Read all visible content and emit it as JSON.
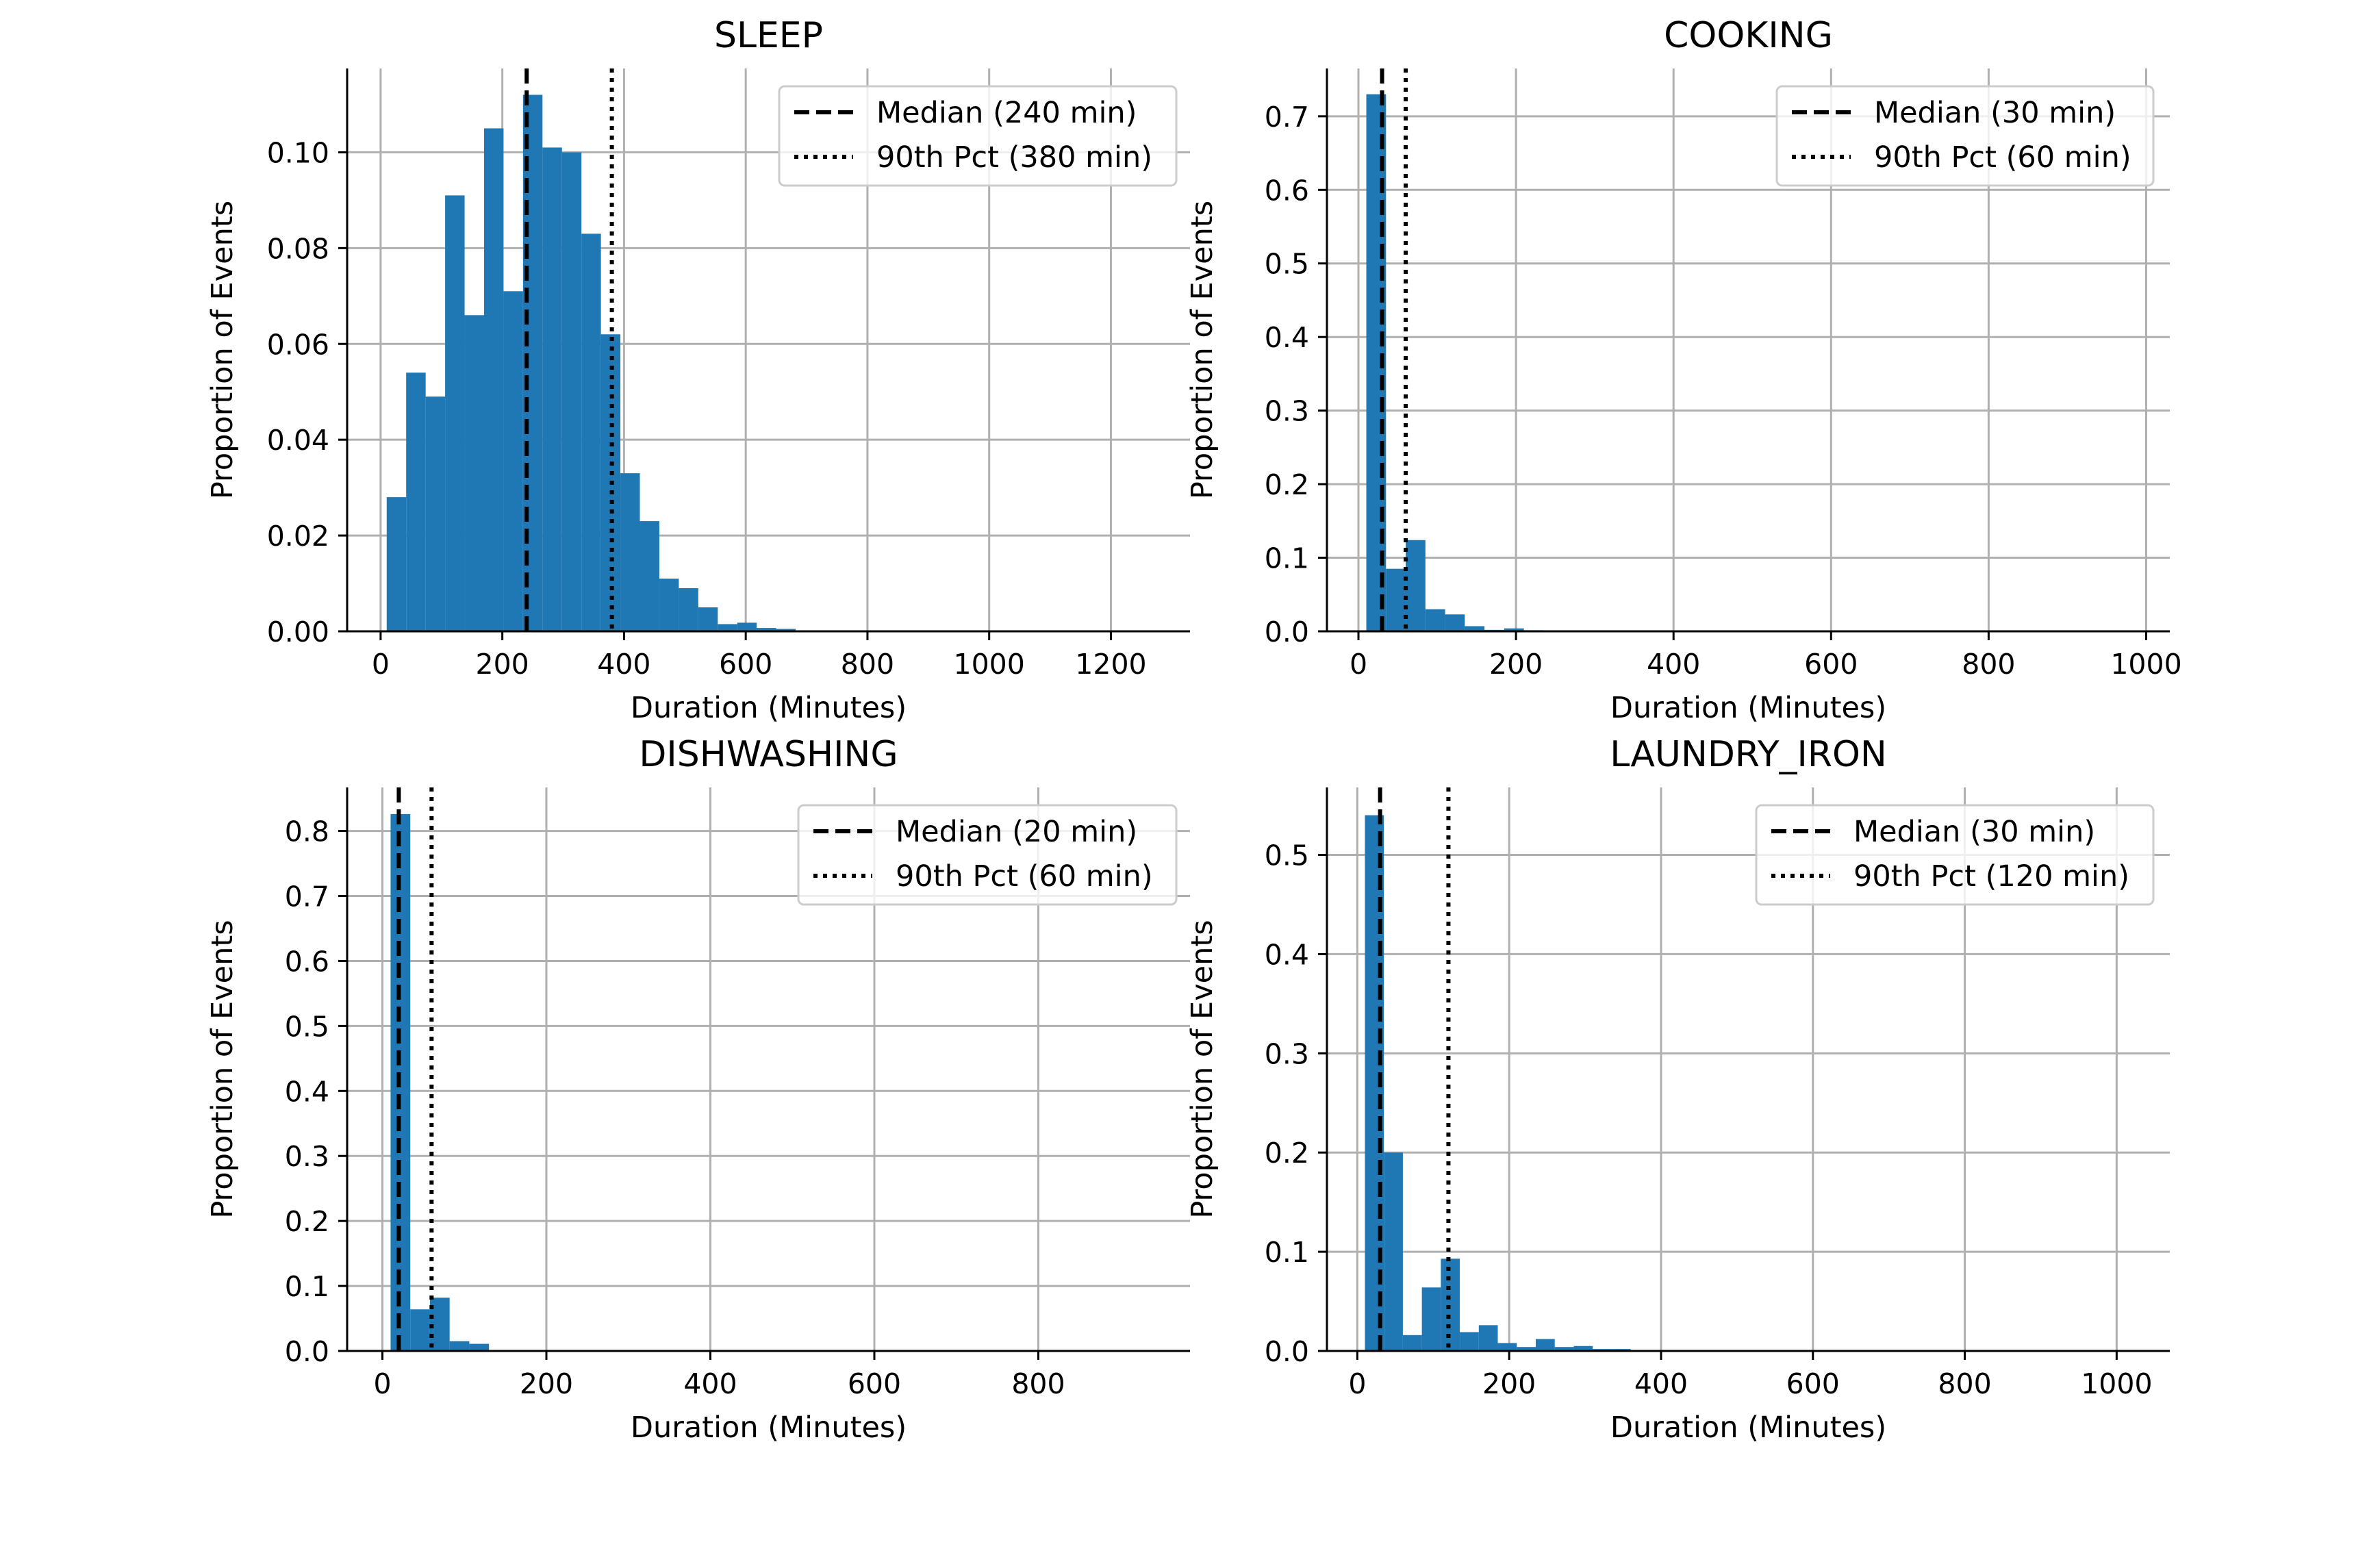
{
  "figure": {
    "bar_color": "#1f77b4",
    "grid_color": "#b0b0b0",
    "median_line_style": "dashed",
    "pct90_line_style": "dotted"
  },
  "chart_data": [
    {
      "type": "bar",
      "title": "SLEEP",
      "xlabel": "Duration (Minutes)",
      "ylabel": "Proportion of Events",
      "xlim": [
        -55,
        1330
      ],
      "ylim": [
        0,
        0.1175
      ],
      "xticks": [
        0,
        200,
        400,
        600,
        800,
        1000,
        1200
      ],
      "xtick_labels": [
        "0",
        "200",
        "400",
        "600",
        "800",
        "1000",
        "1200"
      ],
      "yticks": [
        0,
        0.02,
        0.04,
        0.06,
        0.08,
        0.1
      ],
      "ytick_labels": [
        "0.00",
        "0.02",
        "0.04",
        "0.06",
        "0.08",
        "0.10"
      ],
      "grid": true,
      "legend_position": "top-right",
      "bin_width": 32,
      "bin_left_edges": [
        10,
        42,
        74,
        106,
        138,
        170,
        202,
        234,
        266,
        298,
        330,
        362,
        394,
        426,
        458,
        490,
        522,
        554,
        586,
        618,
        650,
        682,
        714,
        746
      ],
      "values": [
        0.028,
        0.054,
        0.049,
        0.091,
        0.066,
        0.105,
        0.071,
        0.112,
        0.101,
        0.1,
        0.083,
        0.062,
        0.033,
        0.023,
        0.011,
        0.009,
        0.005,
        0.0015,
        0.0018,
        0.0007,
        0.0005,
        0.0001,
        0.0002,
        0.0001
      ],
      "median": 240,
      "pct90": 380,
      "legend": [
        "Median (240 min)",
        "90th Pct (380 min)"
      ]
    },
    {
      "type": "bar",
      "title": "COOKING",
      "xlabel": "Duration (Minutes)",
      "ylabel": "Proportion of Events",
      "xlim": [
        -40,
        1030
      ],
      "ylim": [
        0,
        0.765
      ],
      "xticks": [
        0,
        200,
        400,
        600,
        800,
        1000
      ],
      "xtick_labels": [
        "0",
        "200",
        "400",
        "600",
        "800",
        "1000"
      ],
      "yticks": [
        0,
        0.1,
        0.2,
        0.3,
        0.4,
        0.5,
        0.6,
        0.7
      ],
      "ytick_labels": [
        "0.0",
        "0.1",
        "0.2",
        "0.3",
        "0.4",
        "0.5",
        "0.6",
        "0.7"
      ],
      "grid": true,
      "legend_position": "top-right",
      "bin_width": 25,
      "bin_left_edges": [
        10,
        35,
        60,
        85,
        110,
        135,
        160,
        185,
        210
      ],
      "values": [
        0.73,
        0.085,
        0.124,
        0.03,
        0.023,
        0.007,
        0.002,
        0.004,
        0.0015
      ],
      "median": 30,
      "pct90": 60,
      "legend": [
        "Median (30 min)",
        "90th Pct (60 min)"
      ]
    },
    {
      "type": "bar",
      "title": "DISHWASHING",
      "xlabel": "Duration (Minutes)",
      "ylabel": "Proportion of Events",
      "xlim": [
        -43,
        985
      ],
      "ylim": [
        0,
        0.867
      ],
      "xticks": [
        0,
        200,
        400,
        600,
        800
      ],
      "xtick_labels": [
        "0",
        "200",
        "400",
        "600",
        "800"
      ],
      "yticks": [
        0,
        0.1,
        0.2,
        0.3,
        0.4,
        0.5,
        0.6,
        0.7,
        0.8
      ],
      "ytick_labels": [
        "0.0",
        "0.1",
        "0.2",
        "0.3",
        "0.4",
        "0.5",
        "0.6",
        "0.7",
        "0.8"
      ],
      "grid": true,
      "legend_position": "top-right",
      "bin_width": 24,
      "bin_left_edges": [
        10,
        34,
        58,
        82,
        106
      ],
      "values": [
        0.826,
        0.064,
        0.082,
        0.015,
        0.011
      ],
      "median": 20,
      "pct90": 60,
      "legend": [
        "Median (20 min)",
        "90th Pct (60 min)"
      ]
    },
    {
      "type": "bar",
      "title": "LAUNDRY_IRON",
      "xlabel": "Duration (Minutes)",
      "ylabel": "Proportion of Events",
      "xlim": [
        -40,
        1070
      ],
      "ylim": [
        0,
        0.568
      ],
      "xticks": [
        0,
        200,
        400,
        600,
        800,
        1000
      ],
      "xtick_labels": [
        "0",
        "200",
        "400",
        "600",
        "800",
        "1000"
      ],
      "yticks": [
        0,
        0.1,
        0.2,
        0.3,
        0.4,
        0.5
      ],
      "ytick_labels": [
        "0.0",
        "0.1",
        "0.2",
        "0.3",
        "0.4",
        "0.5"
      ],
      "grid": true,
      "legend_position": "top-right",
      "bin_width": 25,
      "bin_left_edges": [
        10,
        35,
        60,
        85,
        110,
        135,
        160,
        185,
        210,
        235,
        260,
        285,
        310,
        335
      ],
      "values": [
        0.54,
        0.2,
        0.016,
        0.064,
        0.093,
        0.019,
        0.026,
        0.008,
        0.004,
        0.012,
        0.004,
        0.005,
        0.002,
        0.002
      ],
      "median": 30,
      "pct90": 120,
      "legend": [
        "Median (30 min)",
        "90th Pct (120 min)"
      ]
    }
  ]
}
